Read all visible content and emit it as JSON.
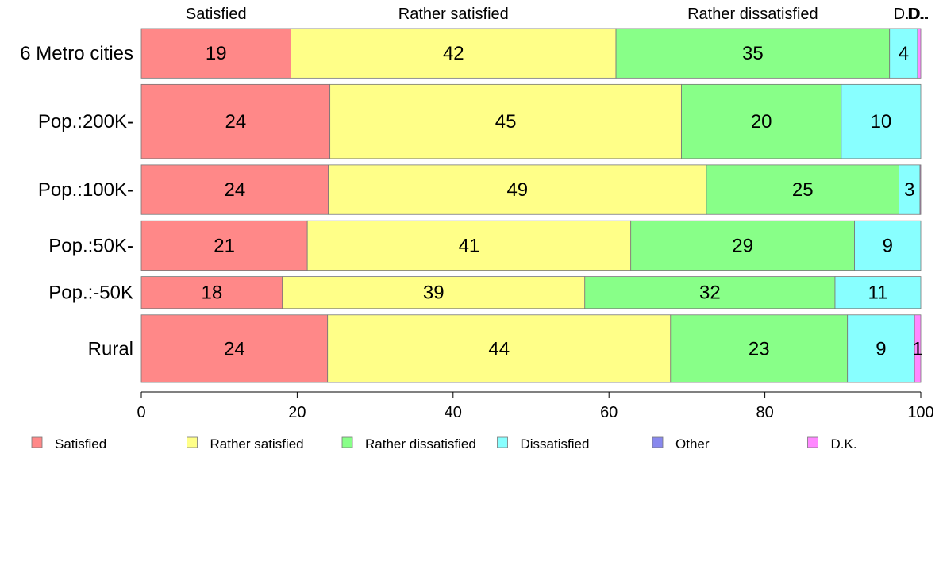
{
  "chart_data": {
    "type": "bar",
    "orientation": "horizontal",
    "stacked": true,
    "title": "",
    "xlabel": "",
    "ylabel": "",
    "xlim": [
      0,
      100
    ],
    "xticks": [
      "0",
      "20",
      "40",
      "60",
      "80",
      "100"
    ],
    "grid": false,
    "legend_position": "bottom",
    "top_labels": [
      "Satisfied",
      "Rather satisfied",
      "Rather dissatisfied",
      "Dissatisfied",
      "Other",
      "D.K."
    ],
    "top_label_texts": [
      "Satisfied",
      "Rather satisfied",
      "Rather dissatisfied",
      "D..",
      "D..",
      "D.."
    ],
    "categories": [
      "6 Metro cities",
      "Pop.:200K-",
      "Pop.:100K-",
      "Pop.:50K-",
      "Pop.:-50K",
      "Rural"
    ],
    "series": [
      {
        "name": "Satisfied",
        "color": "#ff8888",
        "values": [
          19.2,
          24.2,
          24.0,
          21.3,
          18.1,
          23.9
        ],
        "labels": [
          "19",
          "24",
          "24",
          "21",
          "18",
          "24"
        ]
      },
      {
        "name": "Rather satisfied",
        "color": "#ffff88",
        "values": [
          41.7,
          45.1,
          48.5,
          41.5,
          38.8,
          44.0
        ],
        "labels": [
          "42",
          "45",
          "49",
          "41",
          "39",
          "44"
        ]
      },
      {
        "name": "Rather dissatisfied",
        "color": "#88ff88",
        "values": [
          35.1,
          20.5,
          24.7,
          28.7,
          32.1,
          22.7
        ],
        "labels": [
          "35",
          "20",
          "25",
          "29",
          "32",
          "23"
        ]
      },
      {
        "name": "Dissatisfied",
        "color": "#88ffff",
        "values": [
          3.6,
          10.2,
          2.7,
          8.5,
          11.0,
          8.6
        ],
        "labels": [
          "4",
          "10",
          "3",
          "9",
          "11",
          "9"
        ]
      },
      {
        "name": "Other",
        "color": "#8888ee",
        "values": [
          0,
          0,
          0,
          0,
          0,
          0
        ],
        "labels": [
          "",
          "",
          "",
          "",
          "",
          ""
        ]
      },
      {
        "name": "D.K.",
        "color": "#ff88ff",
        "values": [
          0.4,
          0,
          0.1,
          0,
          0,
          0.8
        ],
        "labels": [
          "",
          "",
          "",
          "",
          "",
          "1"
        ]
      }
    ],
    "row_weights": [
      0.9,
      1.35,
      0.9,
      0.9,
      0.58,
      1.23
    ]
  }
}
